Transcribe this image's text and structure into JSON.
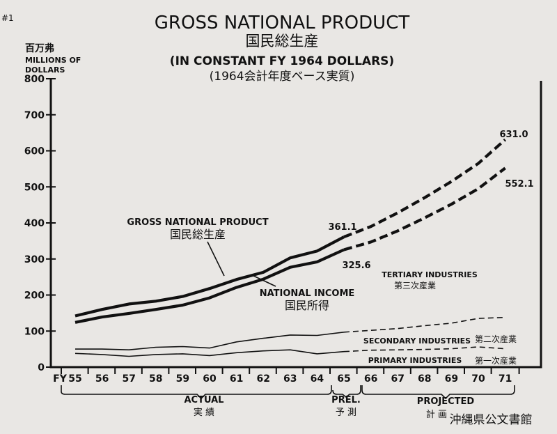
{
  "corner_mark": "#1",
  "watermark": "沖縄県公文書館",
  "chart_data": {
    "type": "line",
    "title": "GROSS NATIONAL PRODUCT",
    "title_ja": "国民総生産",
    "subtitle": "(IN CONSTANT FY 1964 DOLLARS)",
    "subtitle_ja": "(1964会計年度ベース実質)",
    "ylabel_ja": "百万弗",
    "ylabel_en_1": "MILLIONS OF",
    "ylabel_en_2": "DOLLARS",
    "xlabel": "FY",
    "ylim": [
      0,
      800
    ],
    "yticks": [
      0,
      100,
      200,
      300,
      400,
      500,
      600,
      700,
      800
    ],
    "ytick_labels": [
      "0",
      "100",
      "200",
      "300",
      "400",
      "500",
      "600",
      "700",
      "800"
    ],
    "x": [
      "55",
      "56",
      "57",
      "58",
      "59",
      "60",
      "61",
      "62",
      "63",
      "64",
      "65",
      "66",
      "67",
      "68",
      "69",
      "70",
      "71"
    ],
    "actual_end_index": 10,
    "series": [
      {
        "name": "GROSS NATIONAL PRODUCT",
        "name_ja": "国民総生産",
        "weight": "heavy",
        "values": [
          142,
          160,
          175,
          183,
          196,
          218,
          243,
          263,
          303,
          322,
          361.1,
          390,
          428,
          470,
          515,
          565,
          631.0
        ]
      },
      {
        "name": "NATIONAL INCOME",
        "name_ja": "国民所得",
        "weight": "heavy",
        "values": [
          124,
          139,
          149,
          160,
          172,
          192,
          221,
          244,
          277,
          292,
          325.6,
          347,
          378,
          414,
          452,
          495,
          552.1
        ]
      },
      {
        "name": "TERTIARY INDUSTRIES",
        "name_ja": "第三次産業",
        "weight": "light",
        "values": [
          50,
          50,
          48,
          55,
          57,
          53,
          70,
          80,
          89,
          88,
          97,
          102,
          107,
          115,
          122,
          135,
          138
        ]
      },
      {
        "name": "SECONDARY INDUSTRIES",
        "name_ja": "第二次産業",
        "weight": "light",
        "values": [
          38,
          35,
          30,
          35,
          37,
          32,
          40,
          45,
          48,
          37,
          43,
          47,
          48,
          49,
          51,
          56,
          51
        ]
      }
    ],
    "value_labels": [
      "361.1",
      "325.6",
      "631.0",
      "552.1"
    ],
    "annotations": {
      "primary_industries": "PRIMARY INDUSTRIES",
      "primary_industries_ja": "第一次産業",
      "actual": "ACTUAL",
      "actual_ja": "実 績",
      "prel": "PREL.",
      "prel_ja": "予 測",
      "projected": "PROJECTED",
      "projected_ja": "計 画"
    },
    "grid": false
  }
}
